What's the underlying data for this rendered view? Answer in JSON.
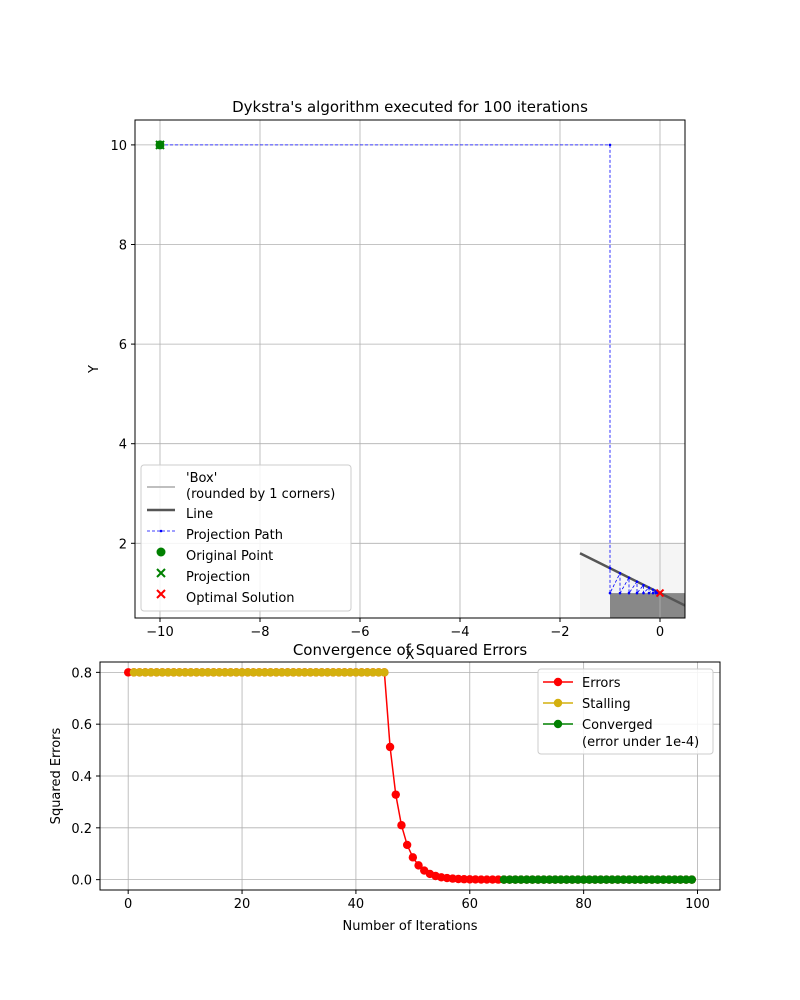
{
  "figure": {
    "width": 800,
    "height": 1000
  },
  "chart_data": [
    {
      "type": "scatter",
      "title": "Dykstra's algorithm executed for 100 iterations",
      "xlabel": "X",
      "ylabel": "Y",
      "xlim": [
        -10.5,
        0.5
      ],
      "ylim": [
        0.5,
        10.5
      ],
      "xticks": [
        -10,
        -8,
        -6,
        -4,
        -2,
        0
      ],
      "xtick_labels": [
        "−10",
        "−8",
        "−6",
        "−4",
        "−2",
        "0"
      ],
      "yticks": [
        2,
        4,
        6,
        8,
        10
      ],
      "ytick_labels": [
        "2",
        "4",
        "6",
        "8",
        "10"
      ],
      "grid": true,
      "legend_position": "lower-left",
      "box_set": {
        "x": [
          -1.6,
          0.5
        ],
        "y": [
          0,
          2
        ],
        "color": "#f5f5f5"
      },
      "halfplane_set": {
        "x": [
          -1,
          0.5
        ],
        "y": [
          0.5,
          1
        ],
        "color": "#888888"
      },
      "line": {
        "x": [
          -1.6,
          0.5
        ],
        "y": [
          1.8,
          0.75
        ],
        "color": "#555555"
      },
      "projection_path": {
        "color": "#0000ff",
        "points": [
          [
            -10,
            10
          ],
          [
            -1,
            10
          ],
          [
            -1,
            1.5
          ],
          [
            -1,
            1
          ],
          [
            -0.8,
            1.4
          ],
          [
            -0.8,
            1
          ],
          [
            -0.62,
            1.31
          ],
          [
            -0.62,
            1
          ],
          [
            -0.46,
            1.23
          ],
          [
            -0.46,
            1
          ],
          [
            -0.33,
            1.16
          ],
          [
            -0.33,
            1
          ],
          [
            -0.22,
            1.11
          ],
          [
            -0.22,
            1
          ],
          [
            -0.14,
            1.07
          ],
          [
            -0.14,
            1
          ],
          [
            -0.08,
            1.04
          ],
          [
            -0.08,
            1
          ],
          [
            -0.04,
            1.02
          ],
          [
            -0.04,
            1
          ],
          [
            -0.01,
            1.005
          ],
          [
            0,
            1
          ]
        ]
      },
      "original_point": {
        "x": -10,
        "y": 10,
        "color": "#008000"
      },
      "projection": {
        "x": -10,
        "y": 10,
        "color": "#008000"
      },
      "optimal_solution": {
        "x": 0,
        "y": 1,
        "color": "#ff0000"
      },
      "legend": [
        {
          "label": "'Box'\n(rounded by 1 corners)",
          "marker": "line",
          "color": "#aaaaaa"
        },
        {
          "label": "Line",
          "marker": "line",
          "color": "#555555"
        },
        {
          "label": "Projection Path",
          "marker": "dashed",
          "color": "#0000ff"
        },
        {
          "label": "Original Point",
          "marker": "circle",
          "color": "#008000"
        },
        {
          "label": "Projection",
          "marker": "x",
          "color": "#008000"
        },
        {
          "label": "Optimal Solution",
          "marker": "x",
          "color": "#ff0000"
        }
      ]
    },
    {
      "type": "line",
      "title": "Convergence of Squared Errors",
      "xlabel": "Number of Iterations",
      "ylabel": "Squared Errors",
      "xlim": [
        -4.95,
        103.95
      ],
      "ylim": [
        -0.04,
        0.84
      ],
      "xticks": [
        0,
        20,
        40,
        60,
        80,
        100
      ],
      "xtick_labels": [
        "0",
        "20",
        "40",
        "60",
        "80",
        "100"
      ],
      "yticks": [
        0.0,
        0.2,
        0.4,
        0.6,
        0.8
      ],
      "ytick_labels": [
        "0.0",
        "0.2",
        "0.4",
        "0.6",
        "0.8"
      ],
      "grid": true,
      "legend_position": "upper-right",
      "x": [
        0,
        1,
        2,
        3,
        4,
        5,
        6,
        7,
        8,
        9,
        10,
        11,
        12,
        13,
        14,
        15,
        16,
        17,
        18,
        19,
        20,
        21,
        22,
        23,
        24,
        25,
        26,
        27,
        28,
        29,
        30,
        31,
        32,
        33,
        34,
        35,
        36,
        37,
        38,
        39,
        40,
        41,
        42,
        43,
        44,
        45,
        46,
        47,
        48,
        49,
        50,
        51,
        52,
        53,
        54,
        55,
        56,
        57,
        58,
        59,
        60,
        61,
        62,
        63,
        64,
        65,
        66,
        67,
        68,
        69,
        70,
        71,
        72,
        73,
        74,
        75,
        76,
        77,
        78,
        79,
        80,
        81,
        82,
        83,
        84,
        85,
        86,
        87,
        88,
        89,
        90,
        91,
        92,
        93,
        94,
        95,
        96,
        97,
        98,
        99
      ],
      "y": [
        0.8,
        0.8,
        0.8,
        0.8,
        0.8,
        0.8,
        0.8,
        0.8,
        0.8,
        0.8,
        0.8,
        0.8,
        0.8,
        0.8,
        0.8,
        0.8,
        0.8,
        0.8,
        0.8,
        0.8,
        0.8,
        0.8,
        0.8,
        0.8,
        0.8,
        0.8,
        0.8,
        0.8,
        0.8,
        0.8,
        0.8,
        0.8,
        0.8,
        0.8,
        0.8,
        0.8,
        0.8,
        0.8,
        0.8,
        0.8,
        0.8,
        0.8,
        0.8,
        0.8,
        0.8,
        0.8,
        0.512,
        0.328,
        0.21,
        0.134,
        0.086,
        0.055,
        0.035,
        0.022,
        0.014,
        0.009,
        0.006,
        0.004,
        0.0025,
        0.0016,
        0.001,
        0.0007,
        0.0004,
        0.0003,
        0.0002,
        0.00012,
        8e-05,
        0,
        0,
        0,
        0,
        0,
        0,
        0,
        0,
        0,
        0,
        0,
        0,
        0,
        0,
        0,
        0,
        0,
        0,
        0,
        0,
        0,
        0,
        0,
        0,
        0,
        0,
        0,
        0,
        0,
        0,
        0,
        0,
        0
      ],
      "series": [
        {
          "name": "Errors",
          "color": "#ff0000",
          "from": 0,
          "to": 99
        },
        {
          "name": "Stalling",
          "color": "#d4b00e",
          "from": 1,
          "to": 45
        },
        {
          "name": "Converged\n(error under 1e-4)",
          "color": "#008000",
          "from": 66,
          "to": 99
        }
      ]
    }
  ]
}
